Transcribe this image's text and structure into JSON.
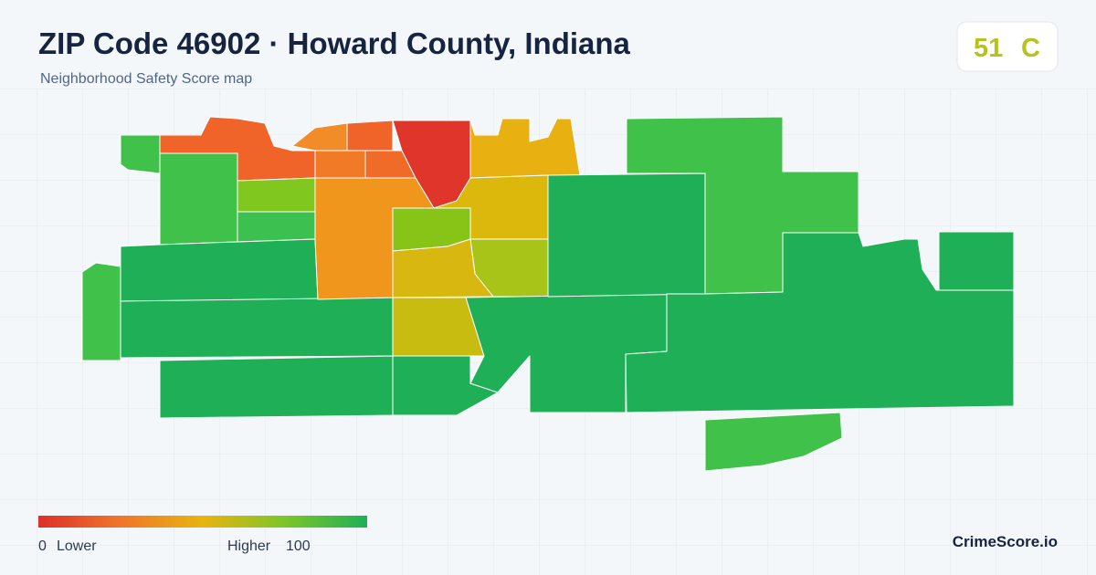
{
  "header": {
    "title": "ZIP Code 46902 · Howard County, Indiana",
    "subtitle": "Neighborhood Safety Score map"
  },
  "badge": {
    "score": 51,
    "grade": "C"
  },
  "legend": {
    "min": 0,
    "min_label": "Lower",
    "max_label": "Higher",
    "max": 100
  },
  "brand": "CrimeScore.io"
}
